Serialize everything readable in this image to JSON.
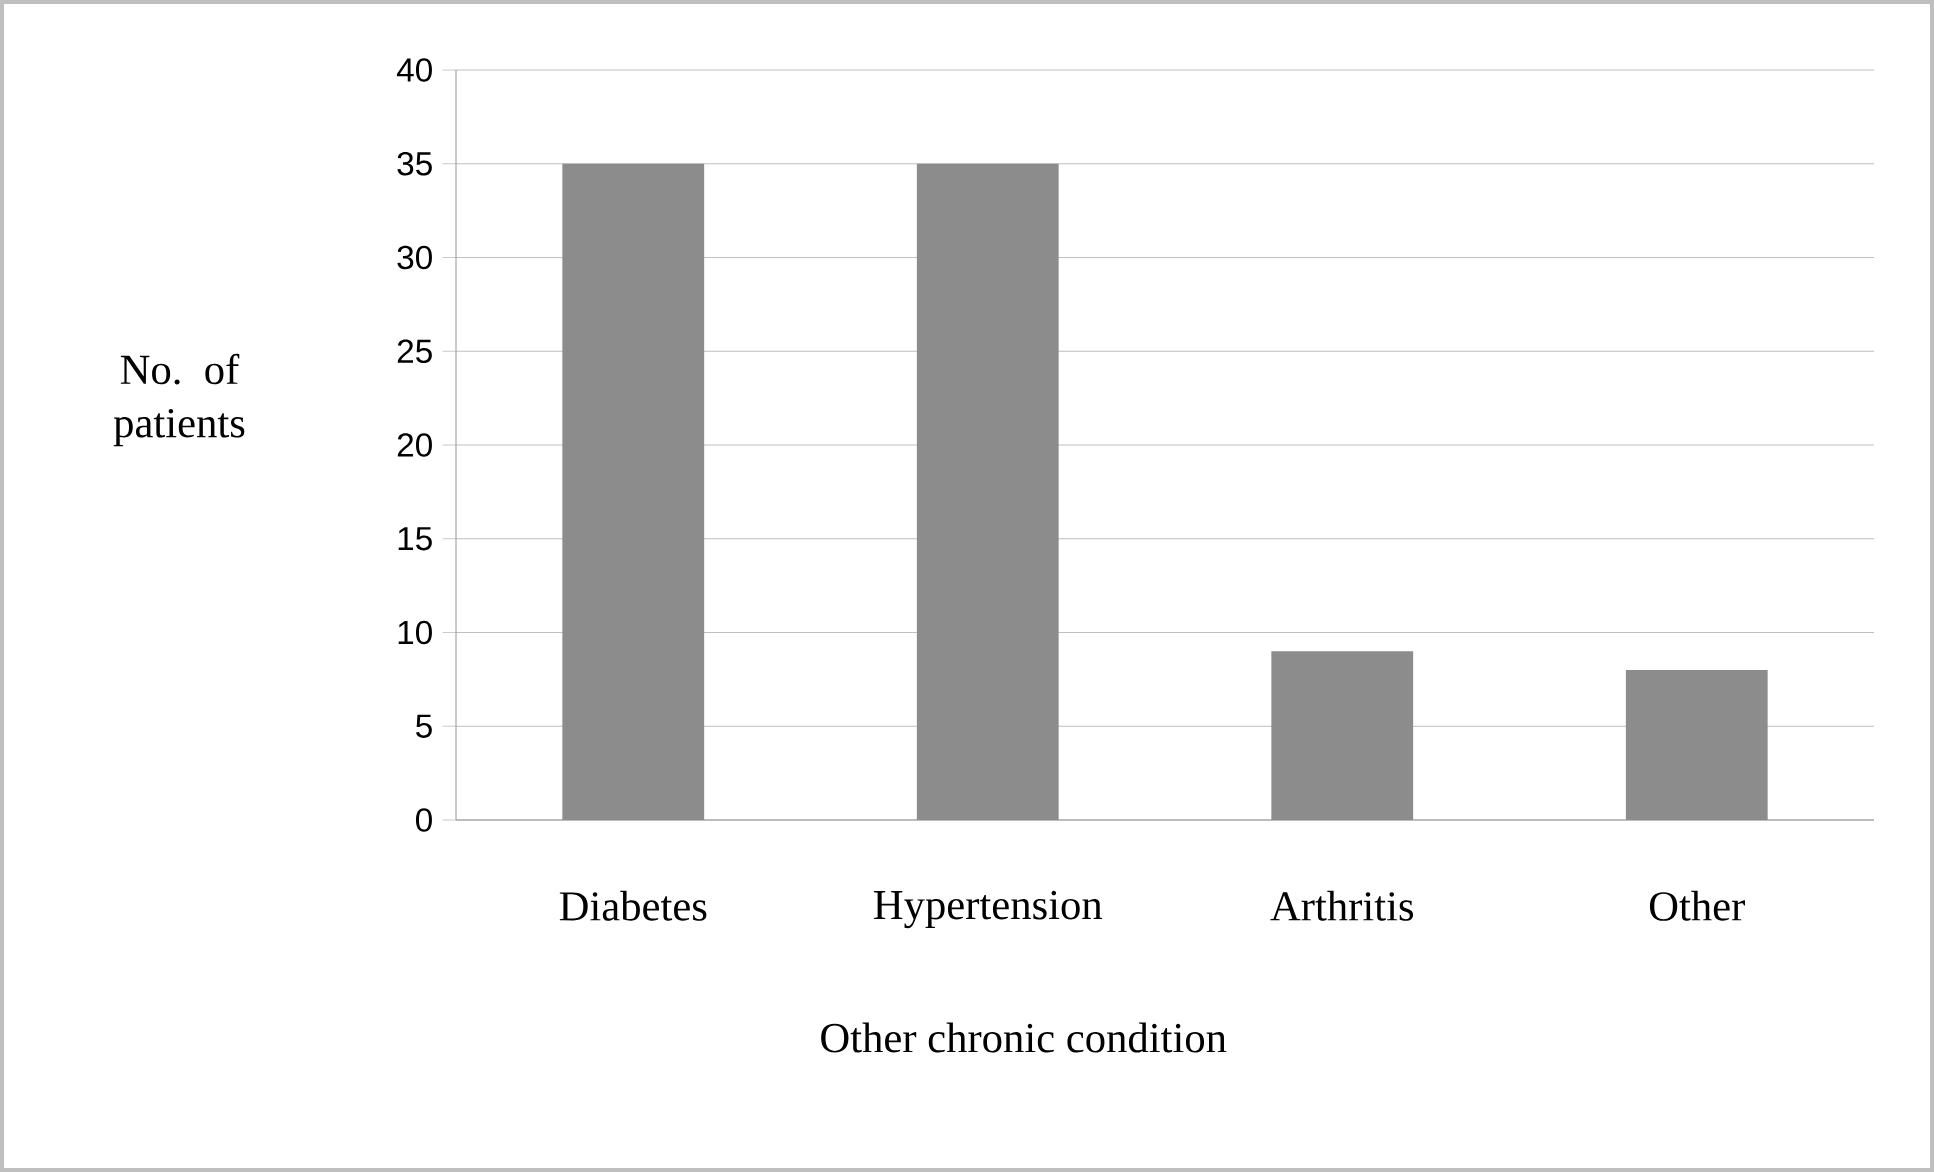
{
  "chart_data": {
    "type": "bar",
    "xlabel": "Other chronic condition",
    "ylabel": "No. of patients",
    "categories": [
      "Diabetes",
      "Hypertension",
      "Arthritis",
      "Other"
    ],
    "values": [
      35,
      35,
      9,
      8
    ],
    "color": "#8c8c8c",
    "ylim": [
      0,
      40
    ],
    "yticks": [
      0,
      5,
      10,
      15,
      20,
      25,
      30,
      35,
      40
    ],
    "grid": "y"
  }
}
